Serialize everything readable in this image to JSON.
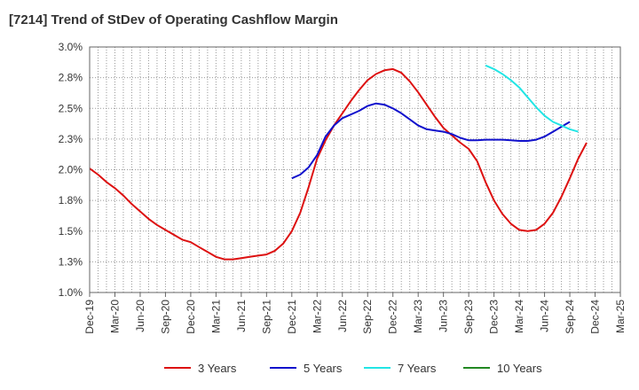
{
  "chart_data": {
    "type": "line",
    "title": "[7214]  Trend of StDev of Operating Cashflow Margin",
    "xlabel": "",
    "ylabel": "",
    "x_tick_labels": [
      "Dec-19",
      "Mar-20",
      "Jun-20",
      "Sep-20",
      "Dec-20",
      "Mar-21",
      "Jun-21",
      "Sep-21",
      "Dec-21",
      "Mar-22",
      "Jun-22",
      "Sep-22",
      "Dec-22",
      "Mar-23",
      "Jun-23",
      "Sep-23",
      "Dec-23",
      "Mar-24",
      "Jun-24",
      "Sep-24",
      "Dec-24",
      "Mar-25"
    ],
    "y_tick_labels": [
      "1.0%",
      "1.3%",
      "1.5%",
      "1.8%",
      "2.0%",
      "2.3%",
      "2.5%",
      "2.8%",
      "3.0%"
    ],
    "y_ticks": [
      1.0,
      1.25,
      1.5,
      1.75,
      2.0,
      2.25,
      2.5,
      2.75,
      3.0
    ],
    "ylim": [
      1.0,
      3.0
    ],
    "grid": true,
    "legend_position": "bottom",
    "series": [
      {
        "name": "3 Years",
        "color": "#dd1111",
        "start_index": 0,
        "values": [
          2.01,
          1.96,
          1.9,
          1.85,
          1.79,
          1.72,
          1.66,
          1.6,
          1.55,
          1.51,
          1.47,
          1.43,
          1.41,
          1.37,
          1.33,
          1.29,
          1.27,
          1.27,
          1.28,
          1.29,
          1.3,
          1.31,
          1.34,
          1.4,
          1.5,
          1.65,
          1.86,
          2.09,
          2.24,
          2.36,
          2.46,
          2.56,
          2.65,
          2.73,
          2.78,
          2.81,
          2.82,
          2.79,
          2.72,
          2.63,
          2.53,
          2.43,
          2.34,
          2.28,
          2.22,
          2.17,
          2.07,
          1.9,
          1.75,
          1.64,
          1.56,
          1.51,
          1.5,
          1.51,
          1.56,
          1.65,
          1.78,
          1.93,
          2.09,
          2.22
        ]
      },
      {
        "name": "5 Years",
        "color": "#1111cc",
        "start_index": 24,
        "values": [
          1.93,
          1.96,
          2.02,
          2.12,
          2.27,
          2.36,
          2.42,
          2.45,
          2.48,
          2.52,
          2.54,
          2.53,
          2.5,
          2.46,
          2.41,
          2.36,
          2.33,
          2.32,
          2.31,
          2.29,
          2.26,
          2.24,
          2.24,
          2.245,
          2.245,
          2.245,
          2.24,
          2.235,
          2.235,
          2.245,
          2.27,
          2.31,
          2.35,
          2.39
        ]
      },
      {
        "name": "7 Years",
        "color": "#22e5e5",
        "start_index": 47,
        "values": [
          2.85,
          2.82,
          2.78,
          2.73,
          2.67,
          2.59,
          2.51,
          2.44,
          2.39,
          2.36,
          2.33,
          2.31
        ]
      },
      {
        "name": "10 Years",
        "color": "#228822",
        "start_index": 0,
        "values": []
      }
    ]
  }
}
